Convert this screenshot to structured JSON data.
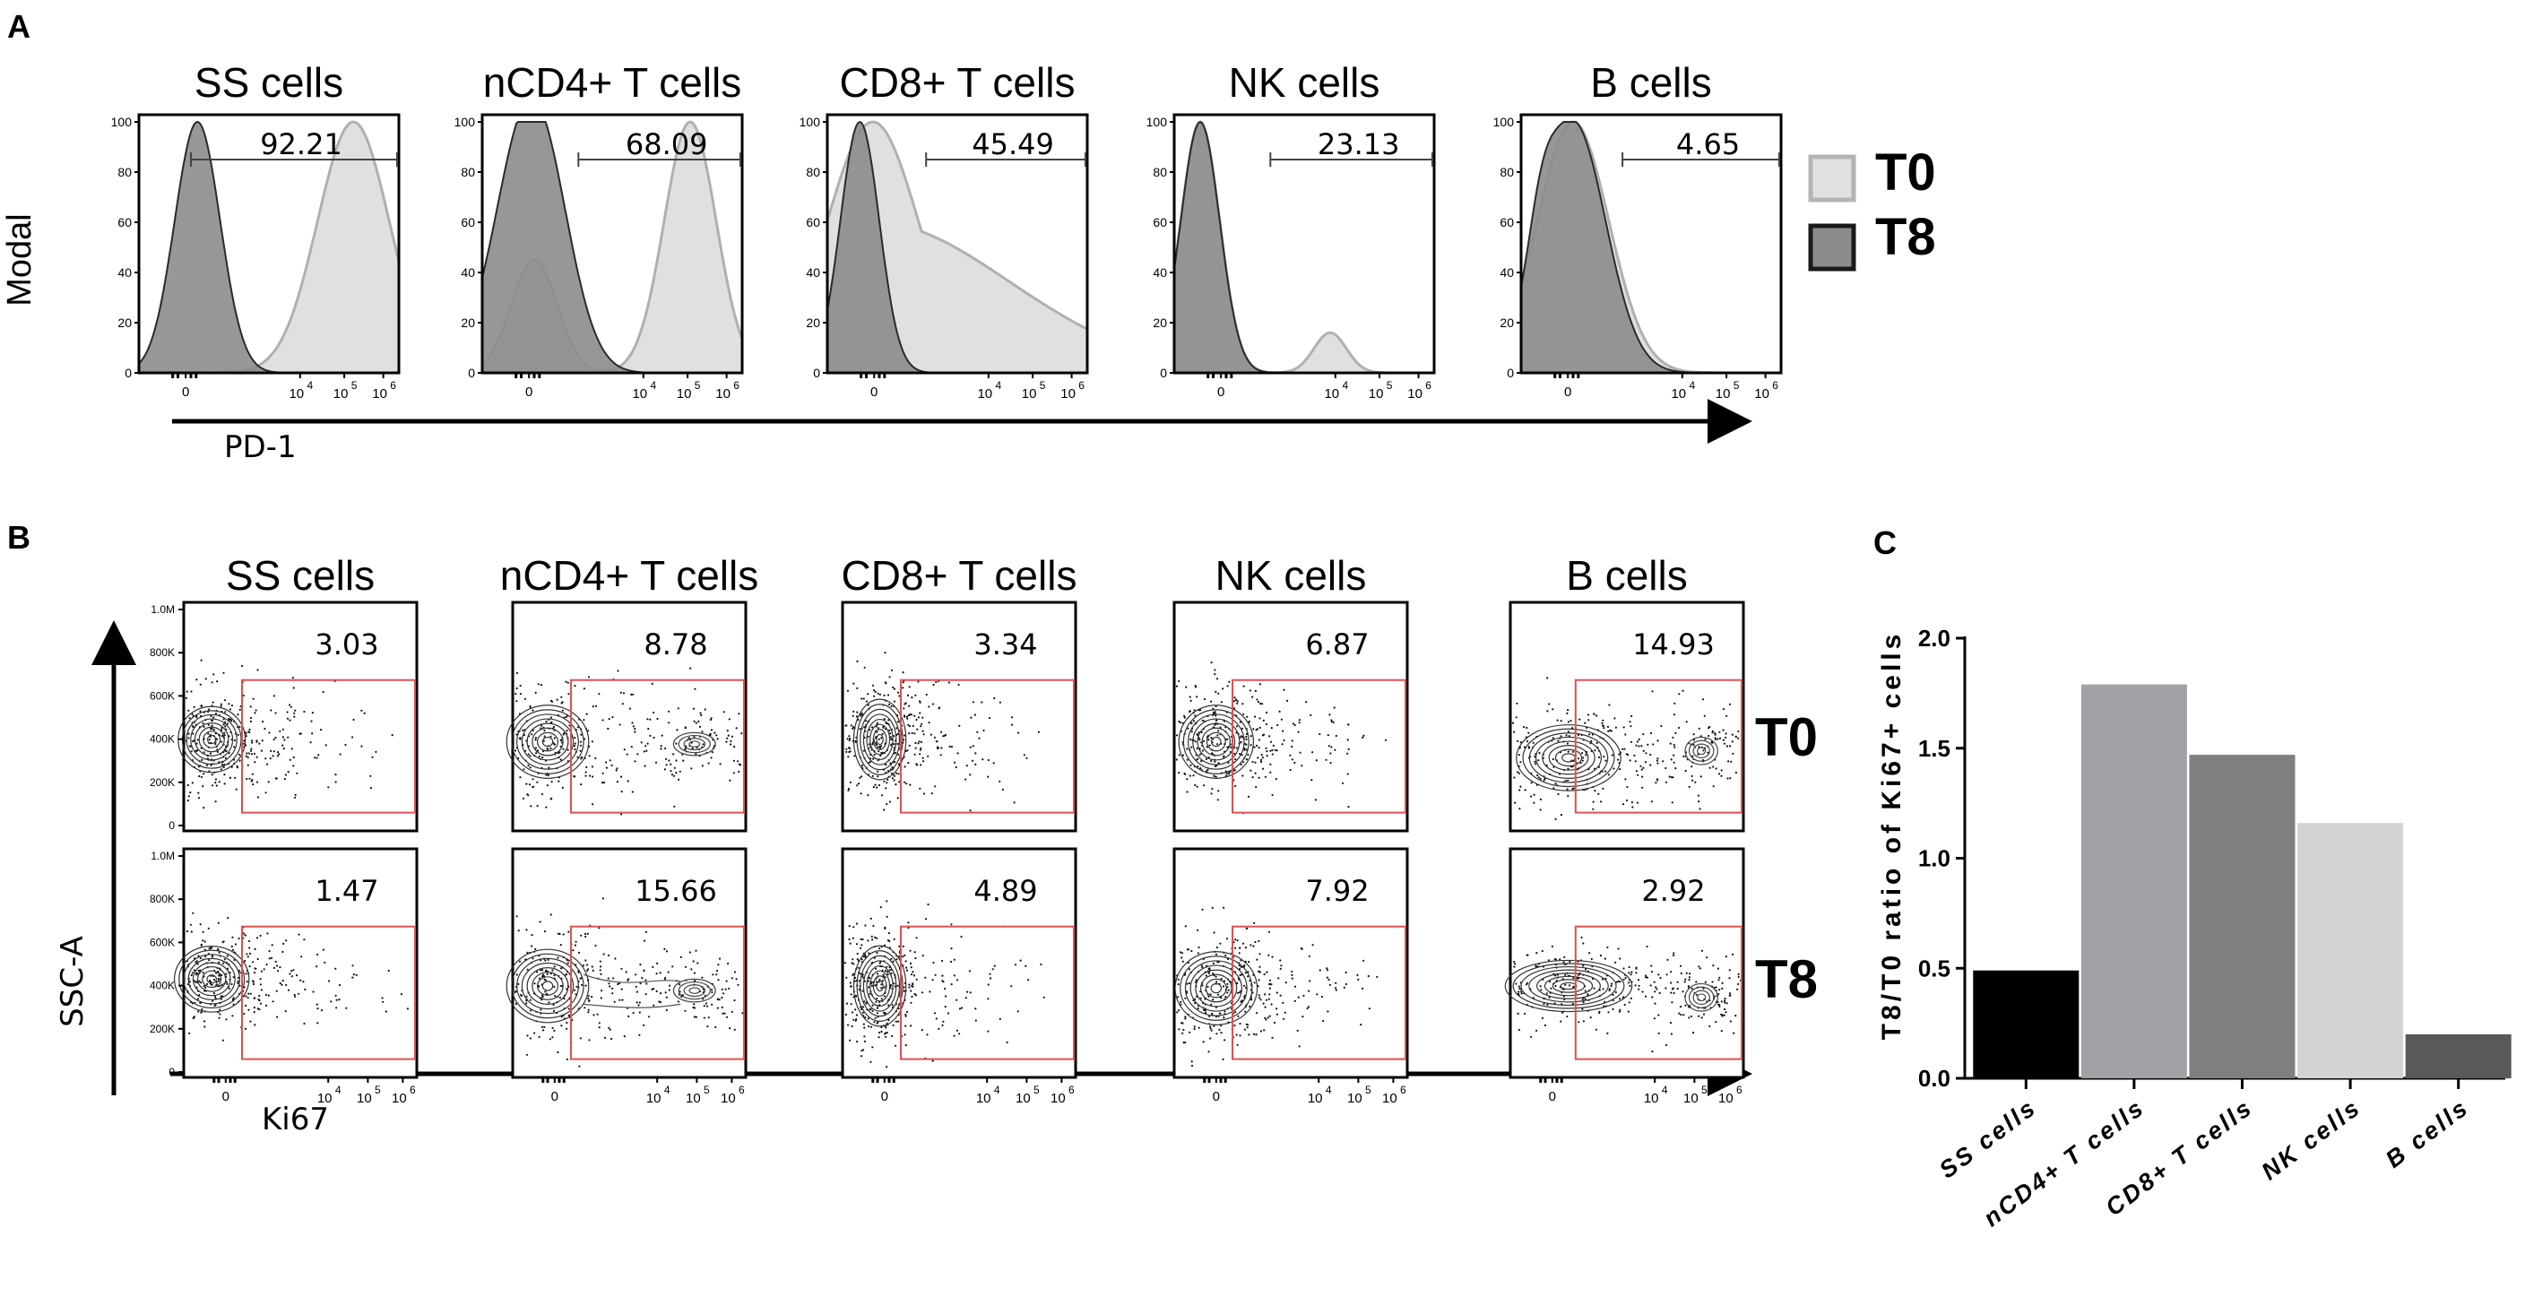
{
  "chart_data": [
    {
      "id": "A",
      "panel_label": "A",
      "type": "histogram-overlay",
      "ylabel": "Modal",
      "xlabel": "PD-1",
      "y_ticks": [
        "100",
        "80",
        "60",
        "40",
        "20",
        "0"
      ],
      "x_ticks": [
        "0",
        "10",
        "4",
        "10",
        "5",
        "10",
        "6"
      ],
      "legend": [
        {
          "name": "T0",
          "color": "#e0e0e0",
          "stroke": "#b4b4b4"
        },
        {
          "name": "T8",
          "color": "#8c8c8c",
          "stroke": "#2a2a2a"
        }
      ],
      "panels": [
        {
          "title": "SS cells",
          "gate_value": "92.21",
          "t0_peak": 2.7,
          "t0_width": 0.55,
          "t8_peak": 0.3,
          "t8_width": 0.35
        },
        {
          "title": "nCD4+ T cells",
          "gate_value": "68.09",
          "t0_peak": 2.6,
          "t0_width": 0.4,
          "t8_peak": 0.1,
          "t8_width": 0.5
        },
        {
          "title": "CD8+ T cells",
          "gate_value": "45.49",
          "t0_peak": 0.1,
          "t0_width": 0.7,
          "t8_peak": -0.1,
          "t8_width": 0.3
        },
        {
          "title": "NK cells",
          "gate_value": "23.13",
          "t0_peak": -0.2,
          "t0_width": 0.3,
          "t8_peak": -0.2,
          "t8_width": 0.3
        },
        {
          "title": "B cells",
          "gate_value": "4.65",
          "t0_peak": 0.2,
          "t0_width": 0.55,
          "t8_peak": 0.2,
          "t8_width": 0.5
        }
      ]
    },
    {
      "id": "B",
      "panel_label": "B",
      "type": "contour-scatter",
      "ylabel": "SSC-A",
      "xlabel": "Ki67",
      "y_ticks": [
        "1.0M",
        "800K",
        "600K",
        "400K",
        "200K",
        "0"
      ],
      "x_ticks": [
        "0",
        "10",
        "4",
        "10",
        "5",
        "10",
        "6"
      ],
      "row_labels": [
        "T0",
        "T8"
      ],
      "panels": [
        {
          "title": "SS cells",
          "t0_value": "3.03",
          "t8_value": "1.47"
        },
        {
          "title": "nCD4+ T cells",
          "t0_value": "8.78",
          "t8_value": "15.66"
        },
        {
          "title": "CD8+ T cells",
          "t0_value": "3.34",
          "t8_value": "4.89"
        },
        {
          "title": "NK cells",
          "t0_value": "6.87",
          "t8_value": "7.92"
        },
        {
          "title": "B cells",
          "t0_value": "14.93",
          "t8_value": "2.92"
        }
      ]
    },
    {
      "id": "C",
      "panel_label": "C",
      "type": "bar",
      "ylabel": "T8/T0 ratio of Ki67+ cells",
      "ylim": [
        0,
        2.0
      ],
      "y_ticks": [
        "2.0",
        "1.5",
        "1.0",
        "0.5",
        "0.0"
      ],
      "categories": [
        "SS cells",
        "nCD4+ T cells",
        "CD8+ T cells",
        "NK cells",
        "B cells"
      ],
      "values": [
        0.49,
        1.79,
        1.47,
        1.16,
        0.2
      ],
      "colors": [
        "#000000",
        "#a2a2a6",
        "#7f7f7f",
        "#d3d3d3",
        "#595959"
      ]
    }
  ]
}
